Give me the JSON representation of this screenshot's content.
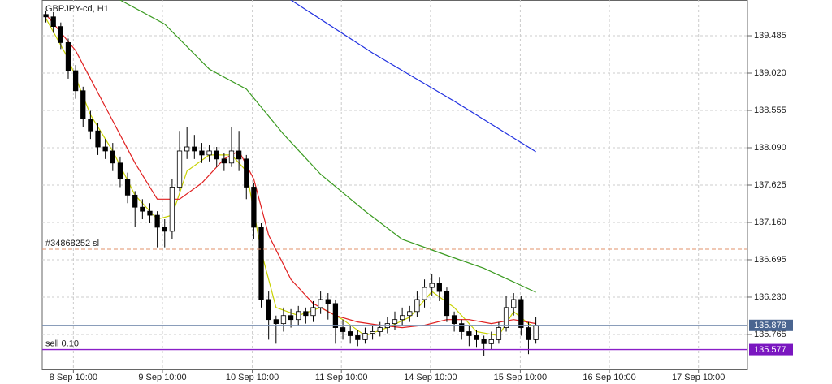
{
  "chart_data": {
    "type": "candlestick",
    "title": "GBPJPY-cd, H1",
    "ylim": [
      135.33,
      139.93
    ],
    "yticks": [
      139.485,
      {
        "value": 139.02,
        "label": "139.020"
      },
      138.555,
      {
        "value": 138.09,
        "label": "138.090"
      },
      137.625,
      {
        "value": 137.16,
        "label": "137.160"
      },
      136.695,
      {
        "value": 136.23,
        "label": "136.230"
      },
      135.765
    ],
    "xlim": [
      -0.5,
      94.5
    ],
    "xticks": [
      {
        "value": 3.7,
        "label": "8 Sep 10:00"
      },
      {
        "value": 15.7,
        "label": "9 Sep 10:00"
      },
      {
        "value": 27.8,
        "label": "10 Sep 10:00"
      },
      {
        "value": 39.8,
        "label": "11 Sep 10:00"
      },
      {
        "value": 51.8,
        "label": "14 Sep 10:00"
      },
      {
        "value": 63.9,
        "label": "15 Sep 10:00"
      },
      {
        "value": 75.9,
        "label": "16 Sep 10:00"
      },
      {
        "value": 87.9,
        "label": "17 Sep 10:00"
      }
    ],
    "grid": true,
    "candles": {
      "open": [
        139.75,
        139.72,
        139.6,
        139.4,
        139.05,
        138.8,
        138.45,
        138.3,
        138.1,
        138.05,
        137.9,
        137.7,
        137.5,
        137.35,
        137.3,
        137.25,
        137.1,
        137.05,
        137.6,
        138.05,
        138.1,
        138.05,
        138.0,
        138.05,
        137.95,
        137.9,
        138.05,
        137.95,
        137.6,
        137.1,
        136.2,
        135.95,
        135.9,
        136.0,
        135.95,
        136.05,
        136.0,
        136.1,
        136.2,
        136.15,
        135.85,
        135.8,
        135.75,
        135.7,
        135.78,
        135.8,
        135.85,
        135.9,
        135.95,
        136.0,
        136.05,
        136.2,
        136.35,
        136.4,
        136.3,
        136.0,
        135.9,
        135.8,
        135.75,
        135.7,
        135.65,
        135.7,
        135.85,
        136.1,
        136.2,
        135.85,
        135.7
      ],
      "high": [
        139.8,
        139.78,
        139.65,
        139.45,
        139.12,
        138.85,
        138.55,
        138.4,
        138.2,
        138.15,
        137.98,
        137.78,
        137.55,
        137.45,
        137.4,
        137.3,
        137.2,
        137.7,
        138.3,
        138.35,
        138.25,
        138.15,
        138.12,
        138.1,
        138.02,
        138.35,
        138.3,
        138.0,
        137.65,
        137.15,
        136.3,
        136.0,
        136.1,
        136.08,
        136.12,
        136.1,
        136.18,
        136.3,
        136.28,
        136.2,
        135.95,
        135.88,
        135.82,
        135.85,
        135.88,
        135.92,
        135.98,
        136.05,
        136.1,
        136.12,
        136.3,
        136.45,
        136.52,
        136.48,
        136.35,
        136.05,
        135.95,
        135.88,
        135.82,
        135.75,
        135.8,
        135.92,
        136.25,
        136.28,
        136.25,
        135.92,
        135.98
      ],
      "low": [
        139.65,
        139.52,
        139.32,
        138.95,
        138.7,
        138.35,
        138.2,
        138.0,
        137.95,
        137.8,
        137.6,
        137.4,
        137.1,
        137.2,
        137.15,
        136.85,
        136.85,
        136.95,
        137.55,
        137.95,
        137.95,
        137.9,
        137.92,
        137.85,
        137.8,
        137.85,
        137.8,
        137.45,
        136.95,
        136.1,
        135.7,
        135.65,
        135.8,
        135.85,
        135.88,
        135.9,
        135.92,
        136.02,
        135.95,
        135.65,
        135.7,
        135.65,
        135.62,
        135.65,
        135.7,
        135.74,
        135.78,
        135.82,
        135.88,
        135.92,
        135.98,
        136.1,
        136.25,
        136.18,
        135.92,
        135.8,
        135.7,
        135.62,
        135.6,
        135.5,
        135.58,
        135.65,
        135.8,
        136.0,
        135.75,
        135.52,
        135.65
      ],
      "close": [
        139.72,
        139.6,
        139.4,
        139.05,
        138.8,
        138.45,
        138.3,
        138.1,
        138.05,
        137.9,
        137.7,
        137.5,
        137.35,
        137.3,
        137.25,
        137.1,
        137.05,
        137.6,
        138.05,
        138.1,
        138.05,
        138.0,
        138.05,
        137.95,
        137.9,
        138.05,
        137.95,
        137.6,
        137.1,
        136.2,
        135.95,
        135.9,
        136.0,
        135.95,
        136.05,
        136.0,
        136.1,
        136.2,
        136.15,
        135.85,
        135.8,
        135.75,
        135.7,
        135.78,
        135.8,
        135.85,
        135.9,
        135.95,
        136.0,
        136.05,
        136.2,
        136.35,
        136.4,
        136.3,
        136.0,
        135.9,
        135.8,
        135.75,
        135.7,
        135.65,
        135.7,
        135.85,
        136.1,
        136.2,
        135.85,
        135.7,
        135.88
      ]
    },
    "series": [
      {
        "color": "#c8d200",
        "x": [
          0,
          3,
          6,
          9,
          12,
          15,
          17,
          19,
          22,
          25,
          27,
          29,
          31,
          34,
          37,
          40,
          43,
          46,
          49,
          52,
          55,
          58,
          61,
          63,
          65,
          66
        ],
        "values": [
          139.7,
          139.2,
          138.5,
          138.05,
          137.5,
          137.2,
          137.25,
          137.8,
          138.0,
          138.0,
          137.8,
          136.8,
          136.1,
          136.0,
          136.1,
          135.95,
          135.75,
          135.85,
          135.98,
          136.3,
          136.1,
          135.8,
          135.75,
          136.05,
          135.9,
          135.85
        ]
      },
      {
        "color": "#e02020",
        "x": [
          0,
          4,
          8,
          12,
          15,
          18,
          21,
          24,
          26,
          28,
          30,
          33,
          36,
          39,
          42,
          45,
          48,
          51,
          54,
          57,
          60,
          63,
          66
        ],
        "values": [
          139.75,
          139.3,
          138.6,
          137.9,
          137.45,
          137.45,
          137.65,
          137.95,
          138.05,
          137.7,
          137.0,
          136.45,
          136.15,
          136.0,
          135.92,
          135.88,
          135.85,
          135.88,
          135.95,
          135.95,
          135.9,
          135.95,
          135.9
        ]
      },
      {
        "color": "#3a9a20",
        "x": [
          10,
          16,
          22,
          27,
          32,
          37,
          43,
          48,
          54,
          59,
          66
        ],
        "values": [
          139.93,
          139.63,
          139.07,
          138.82,
          138.26,
          137.76,
          137.3,
          136.95,
          136.75,
          136.59,
          136.29
        ]
      },
      {
        "color": "#2030e0",
        "x": [
          33,
          44,
          55,
          66
        ],
        "values": [
          139.93,
          139.27,
          138.67,
          138.04
        ]
      }
    ],
    "levels": [
      {
        "label": "#34868252 sl",
        "value": 136.826,
        "color": "#e0906a",
        "dashed": true,
        "tag": false
      },
      {
        "value": 135.878,
        "color": "#7a8fb0",
        "dashed": false,
        "tag": true,
        "tag_color": "#4a6590"
      },
      {
        "label": "sell 0.10",
        "value": 135.577,
        "color": "#8a1ec8",
        "dashed": false,
        "tag": true,
        "tag_color": "#7a16c0"
      }
    ]
  }
}
